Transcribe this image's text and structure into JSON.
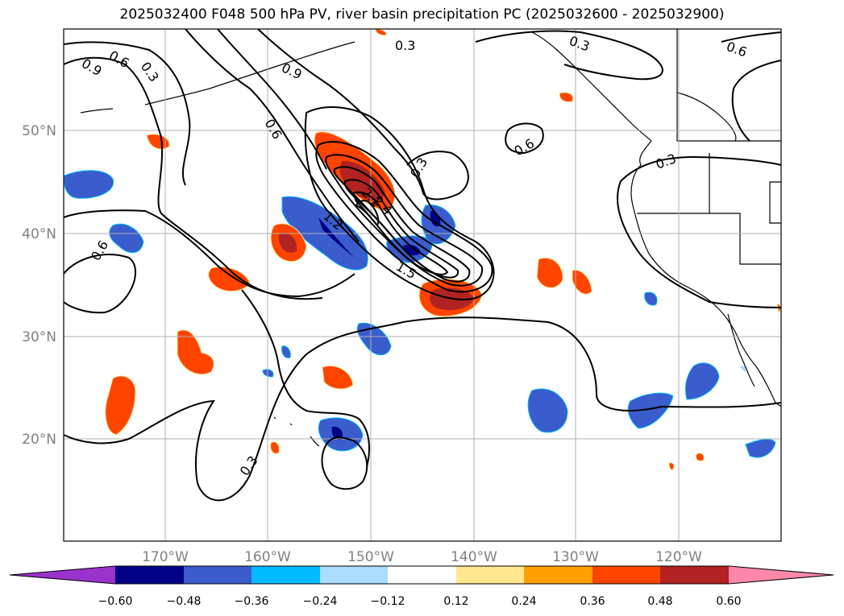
{
  "title": "2025032400 F048 500 hPa PV, river basin precipitation PC (2025032600 - 2025032900)",
  "lon_ticks": [
    "170°W",
    "160°W",
    "150°W",
    "140°W",
    "130°W",
    "120°W"
  ],
  "lat_ticks": [
    "50°N",
    "40°N",
    "30°N",
    "20°N"
  ],
  "pv_contour_labels": [
    "0.3",
    "0.6",
    "0.9",
    "1.2",
    "1.5",
    "2.1",
    "2.4",
    "0.3",
    "0.6",
    "0.9",
    "0.3",
    "0.6",
    "0.3",
    "0.6",
    "0.3",
    "0.3",
    "0.6"
  ],
  "colorbar": {
    "ticks": [
      "−0.60",
      "−0.48",
      "−0.36",
      "−0.24",
      "−0.12",
      "0.12",
      "0.24",
      "0.36",
      "0.48",
      "0.60"
    ],
    "colors": [
      "#9933cc",
      "#000088",
      "#3a5ccc",
      "#00bbff",
      "#aaddff",
      "#ffffff",
      "#ffe890",
      "#ffa000",
      "#ff4400",
      "#b22222",
      "#ff88aa"
    ]
  },
  "map_extent": {
    "lon": [
      -180,
      -110
    ],
    "lat": [
      10,
      60
    ]
  }
}
